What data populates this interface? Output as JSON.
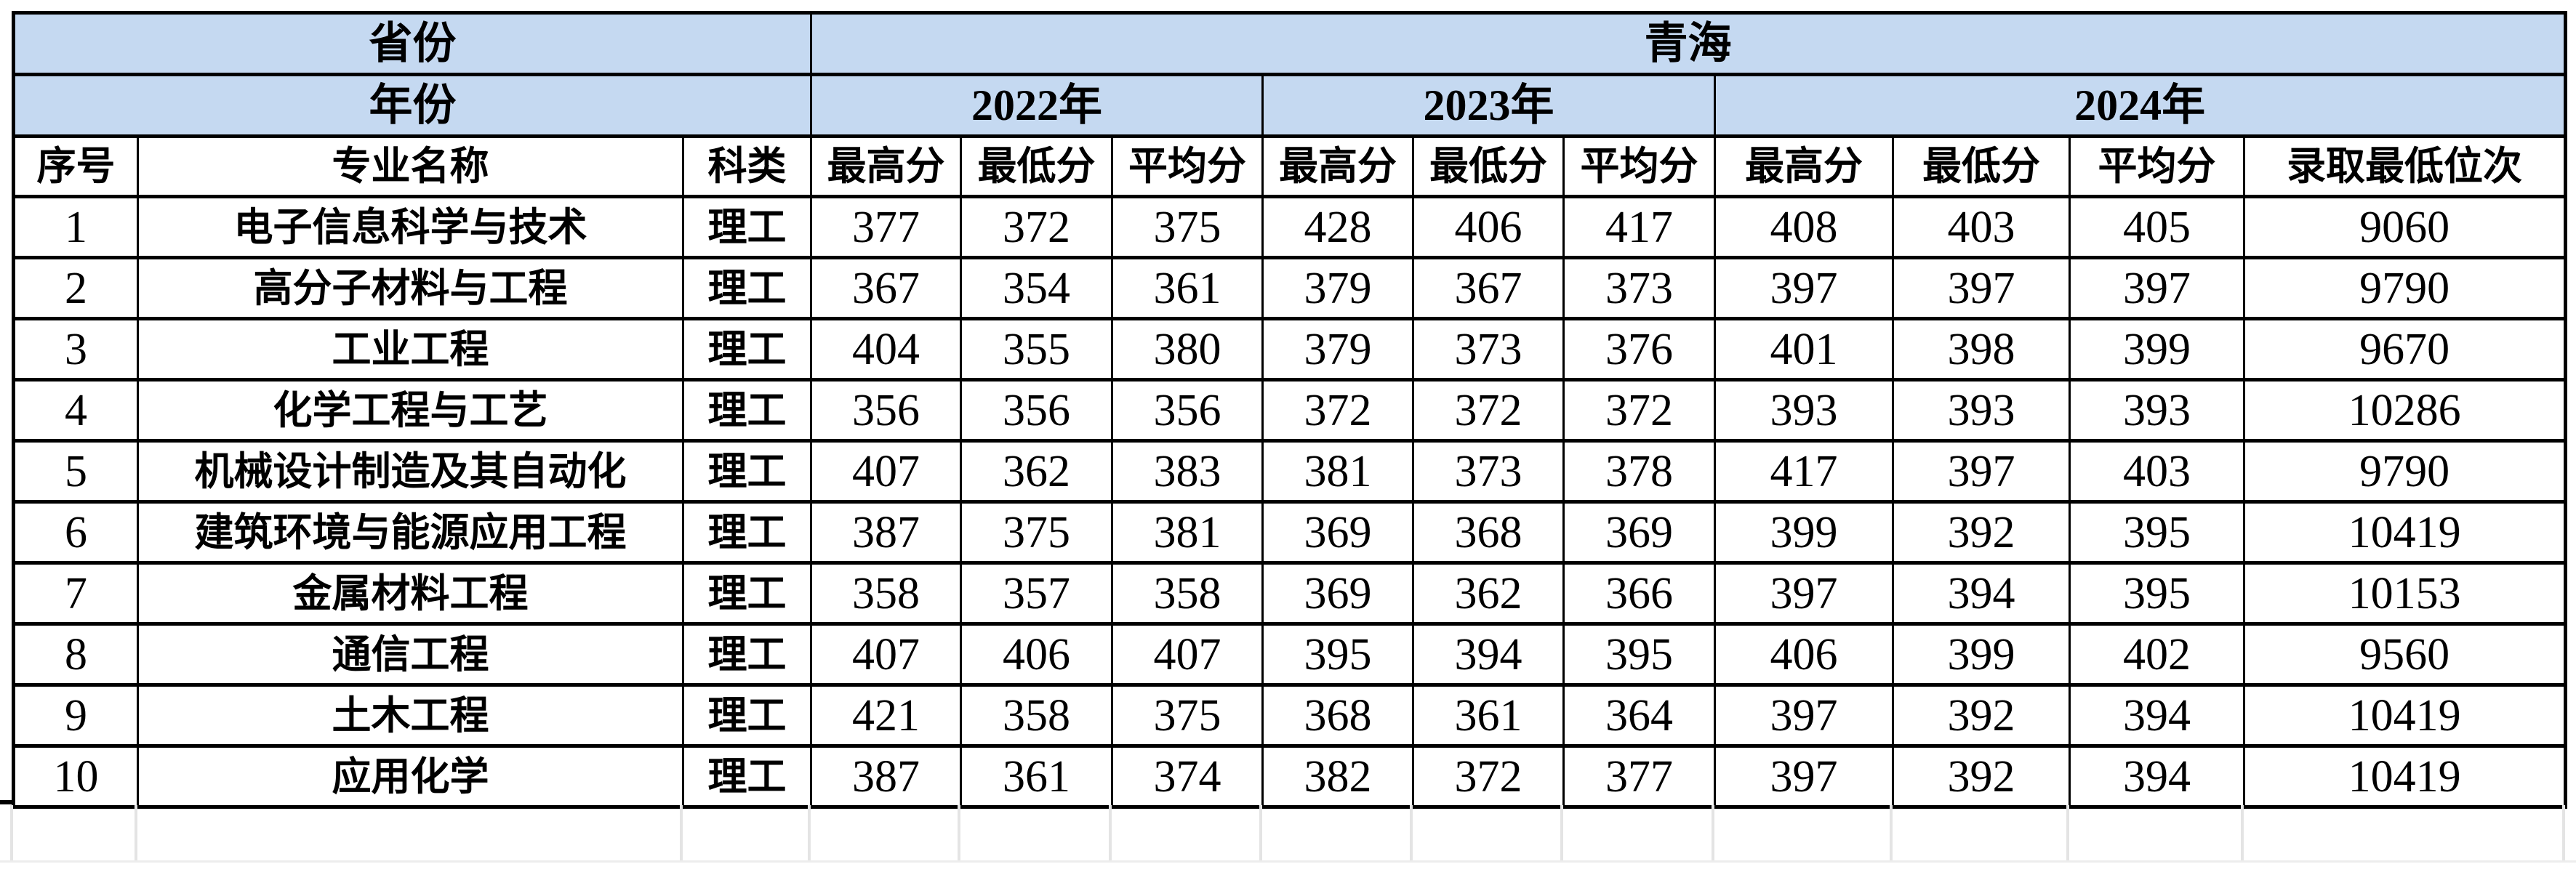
{
  "colors": {
    "header_bg": "#C5D9F1",
    "border": "#000000",
    "gridline": "#E4E4E4"
  },
  "table": {
    "province_label": "省份",
    "province_value": "青海",
    "year_label": "年份",
    "year_groups": [
      {
        "label": "2022年",
        "columns": [
          "最高分",
          "最低分",
          "平均分"
        ]
      },
      {
        "label": "2023年",
        "columns": [
          "最高分",
          "最低分",
          "平均分"
        ]
      },
      {
        "label": "2024年",
        "columns": [
          "最高分",
          "最低分",
          "平均分",
          "录取最低位次"
        ]
      }
    ],
    "col_headers": [
      "序号",
      "专业名称",
      "科类"
    ],
    "score_headers": [
      "最高分",
      "最低分",
      "平均分",
      "最高分",
      "最低分",
      "平均分",
      "最高分",
      "最低分",
      "平均分",
      "录取最低位次"
    ],
    "rows": [
      {
        "no": "1",
        "major": "电子信息科学与技术",
        "category": "理工",
        "scores": [
          "377",
          "372",
          "375",
          "428",
          "406",
          "417",
          "408",
          "403",
          "405",
          "9060"
        ]
      },
      {
        "no": "2",
        "major": "高分子材料与工程",
        "category": "理工",
        "scores": [
          "367",
          "354",
          "361",
          "379",
          "367",
          "373",
          "397",
          "397",
          "397",
          "9790"
        ]
      },
      {
        "no": "3",
        "major": "工业工程",
        "category": "理工",
        "scores": [
          "404",
          "355",
          "380",
          "379",
          "373",
          "376",
          "401",
          "398",
          "399",
          "9670"
        ]
      },
      {
        "no": "4",
        "major": "化学工程与工艺",
        "category": "理工",
        "scores": [
          "356",
          "356",
          "356",
          "372",
          "372",
          "372",
          "393",
          "393",
          "393",
          "10286"
        ]
      },
      {
        "no": "5",
        "major": "机械设计制造及其自动化",
        "category": "理工",
        "scores": [
          "407",
          "362",
          "383",
          "381",
          "373",
          "378",
          "417",
          "397",
          "403",
          "9790"
        ]
      },
      {
        "no": "6",
        "major": "建筑环境与能源应用工程",
        "category": "理工",
        "scores": [
          "387",
          "375",
          "381",
          "369",
          "368",
          "369",
          "399",
          "392",
          "395",
          "10419"
        ]
      },
      {
        "no": "7",
        "major": "金属材料工程",
        "category": "理工",
        "scores": [
          "358",
          "357",
          "358",
          "369",
          "362",
          "366",
          "397",
          "394",
          "395",
          "10153"
        ]
      },
      {
        "no": "8",
        "major": "通信工程",
        "category": "理工",
        "scores": [
          "407",
          "406",
          "407",
          "395",
          "394",
          "395",
          "406",
          "399",
          "402",
          "9560"
        ]
      },
      {
        "no": "9",
        "major": "土木工程",
        "category": "理工",
        "scores": [
          "421",
          "358",
          "375",
          "368",
          "361",
          "364",
          "397",
          "392",
          "394",
          "10419"
        ]
      },
      {
        "no": "10",
        "major": "应用化学",
        "category": "理工",
        "scores": [
          "387",
          "361",
          "374",
          "382",
          "372",
          "377",
          "397",
          "392",
          "394",
          "10419"
        ]
      }
    ]
  },
  "layout_note": ""
}
